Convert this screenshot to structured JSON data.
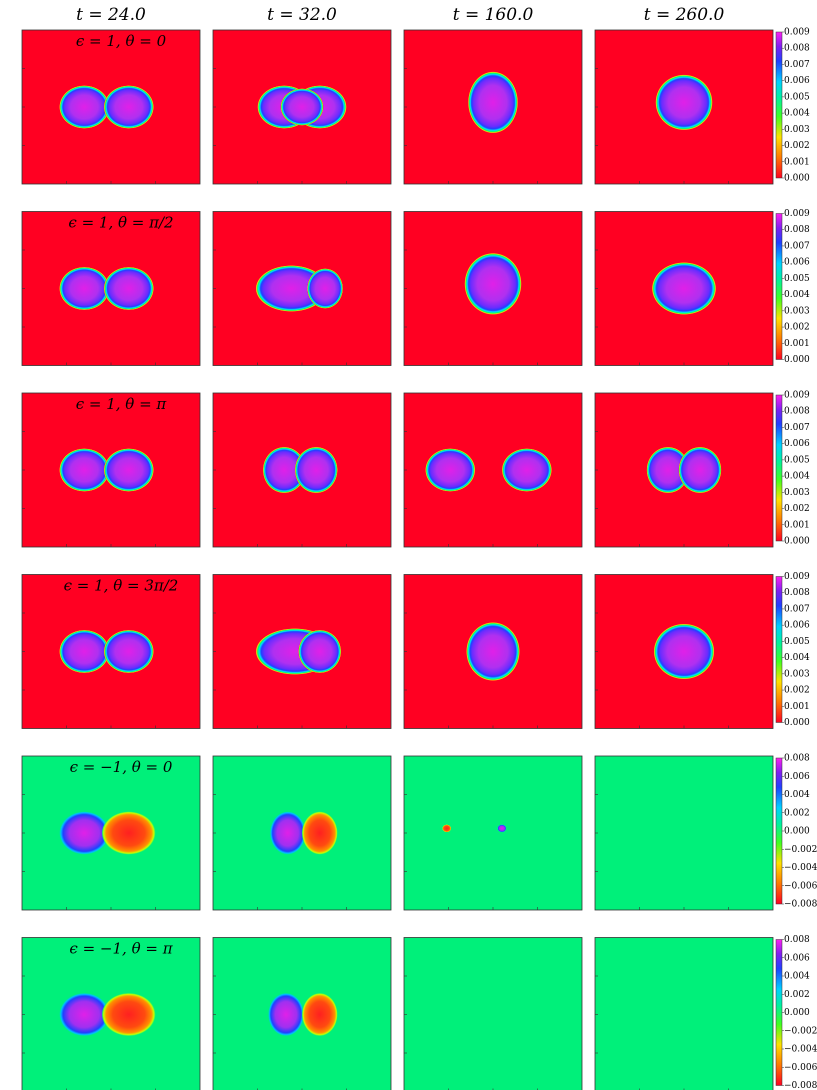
{
  "columns": [
    "t = 24.0",
    "t = 32.0",
    "t = 160.0",
    "t = 260.0"
  ],
  "rows": [
    {
      "label": "ϵ = 1, θ = 0",
      "colorbar_ticks": [
        "0.009",
        "0.008",
        "0.007",
        "0.006",
        "0.005",
        "0.004",
        "0.003",
        "0.002",
        "0.001",
        "0.000"
      ]
    },
    {
      "label": "ϵ = 1, θ = π/2",
      "colorbar_ticks": [
        "0.009",
        "0.008",
        "0.007",
        "0.006",
        "0.005",
        "0.004",
        "0.003",
        "0.002",
        "0.001",
        "0.000"
      ]
    },
    {
      "label": "ϵ = 1, θ = π",
      "colorbar_ticks": [
        "0.009",
        "0.008",
        "0.007",
        "0.006",
        "0.005",
        "0.004",
        "0.003",
        "0.002",
        "0.001",
        "0.000"
      ]
    },
    {
      "label": "ϵ = 1, θ = 3π/2",
      "colorbar_ticks": [
        "0.009",
        "0.008",
        "0.007",
        "0.006",
        "0.005",
        "0.004",
        "0.003",
        "0.002",
        "0.001",
        "0.000"
      ]
    },
    {
      "label": "ϵ = −1, θ = 0",
      "colorbar_ticks": [
        "0.008",
        "0.006",
        "0.004",
        "0.002",
        "0.000",
        "−0.002",
        "−0.004",
        "−0.006",
        "−0.008"
      ]
    },
    {
      "label": "ϵ = −1, θ = π",
      "colorbar_ticks": [
        "0.008",
        "0.006",
        "0.004",
        "0.002",
        "0.000",
        "−0.002",
        "−0.004",
        "−0.006",
        "−0.008"
      ]
    }
  ]
}
